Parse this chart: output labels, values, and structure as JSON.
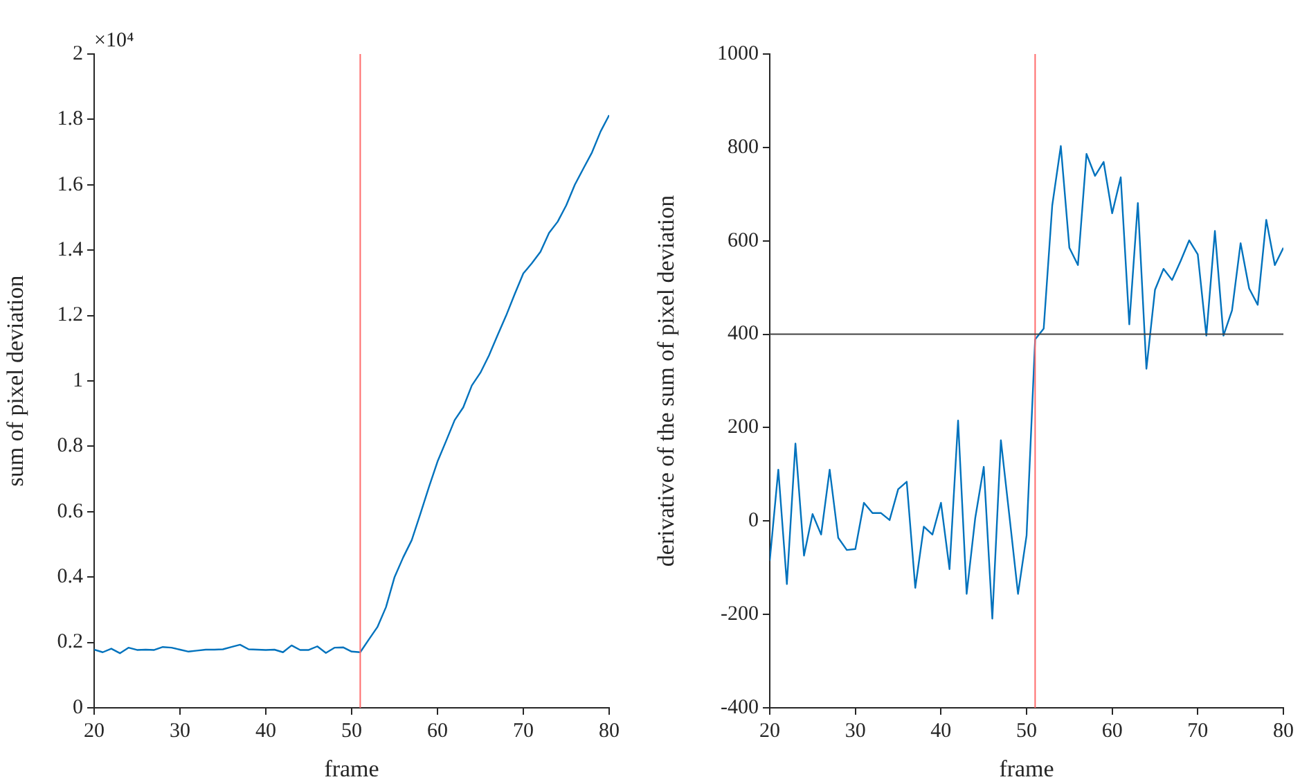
{
  "chart_data": [
    {
      "type": "line",
      "xlabel": "frame",
      "ylabel": "sum of pixel deviation",
      "annotations": [
        "×10⁴"
      ],
      "x": [
        20,
        21,
        22,
        23,
        24,
        25,
        26,
        27,
        28,
        29,
        30,
        31,
        32,
        33,
        34,
        35,
        36,
        37,
        38,
        39,
        40,
        41,
        42,
        43,
        44,
        45,
        46,
        47,
        48,
        49,
        50,
        51,
        52,
        53,
        54,
        55,
        56,
        57,
        58,
        59,
        60,
        61,
        62,
        63,
        64,
        65,
        66,
        67,
        68,
        69,
        70,
        71,
        72,
        73,
        74,
        75,
        76,
        77,
        78,
        79,
        80
      ],
      "series": [
        {
          "color": "#0072bd",
          "values": [
            0.178,
            0.17,
            0.181,
            0.167,
            0.184,
            0.177,
            0.178,
            0.177,
            0.186,
            0.184,
            0.178,
            0.172,
            0.175,
            0.178,
            0.178,
            0.179,
            0.186,
            0.193,
            0.179,
            0.178,
            0.177,
            0.178,
            0.17,
            0.191,
            0.177,
            0.177,
            0.188,
            0.168,
            0.184,
            0.185,
            0.172,
            0.17,
            0.209,
            0.247,
            0.308,
            0.4,
            0.46,
            0.513,
            0.593,
            0.675,
            0.753,
            0.816,
            0.88,
            0.919,
            0.986,
            1.025,
            1.078,
            1.14,
            1.2,
            1.266,
            1.329,
            1.36,
            1.395,
            1.453,
            1.487,
            1.537,
            1.6,
            1.65,
            1.699,
            1.763,
            1.813
          ]
        }
      ],
      "xlim": [
        20,
        80
      ],
      "xticks": [
        20,
        30,
        40,
        50,
        60,
        70,
        80
      ],
      "ylim": [
        0,
        2
      ],
      "yticks": [
        0,
        0.2,
        0.4,
        0.6,
        0.8,
        1,
        1.2,
        1.4,
        1.6,
        1.8,
        2
      ],
      "ref_lines": [
        {
          "axis": "x",
          "value": 51,
          "color": "#ff6b6b"
        }
      ],
      "grid": false,
      "legend": false,
      "marker": "none",
      "line_style": "solid"
    },
    {
      "type": "line",
      "xlabel": "frame",
      "ylabel": "derivative of the sum of pixel deviation",
      "x": [
        20,
        21,
        22,
        23,
        24,
        25,
        26,
        27,
        28,
        29,
        30,
        31,
        32,
        33,
        34,
        35,
        36,
        37,
        38,
        39,
        40,
        41,
        42,
        43,
        44,
        45,
        46,
        47,
        48,
        49,
        50,
        51,
        52,
        53,
        54,
        55,
        56,
        57,
        58,
        59,
        60,
        61,
        62,
        63,
        64,
        65,
        66,
        67,
        68,
        69,
        70,
        71,
        72,
        73,
        74,
        75,
        76,
        77,
        78,
        79,
        80
      ],
      "series": [
        {
          "color": "#0072bd",
          "values": [
            -85,
            110,
            -135,
            166,
            -74,
            15,
            -29,
            110,
            -36,
            -62,
            -60,
            39,
            17,
            17,
            2,
            68,
            84,
            -143,
            -12,
            -29,
            39,
            -103,
            215,
            -156,
            6,
            116,
            -209,
            173,
            10,
            -156,
            -31,
            389,
            412,
            676,
            803,
            585,
            548,
            786,
            739,
            769,
            659,
            736,
            421,
            681,
            326,
            495,
            540,
            516,
            557,
            601,
            571,
            397,
            621,
            397,
            451,
            595,
            498,
            463,
            645,
            548,
            585
          ]
        }
      ],
      "xlim": [
        20,
        80
      ],
      "xticks": [
        20,
        30,
        40,
        50,
        60,
        70,
        80
      ],
      "ylim": [
        -400,
        1000
      ],
      "yticks": [
        -400,
        -200,
        0,
        200,
        400,
        600,
        800,
        1000
      ],
      "ref_lines": [
        {
          "axis": "x",
          "value": 51,
          "color": "#ff6b6b"
        },
        {
          "axis": "y",
          "value": 400,
          "color": "#404040"
        }
      ],
      "grid": false,
      "legend": false,
      "marker": "none",
      "line_style": "solid"
    }
  ]
}
